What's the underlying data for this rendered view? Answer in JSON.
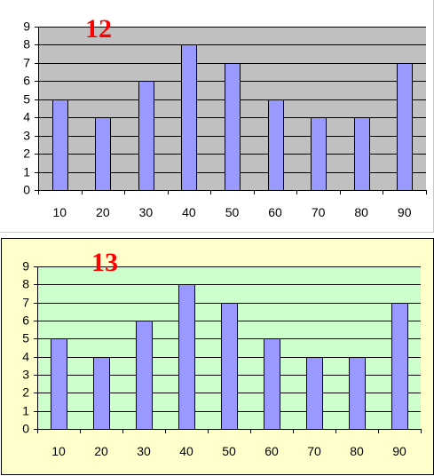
{
  "colors": {
    "bar_fill": "#9999ff",
    "bar_stroke": "#000000",
    "label_color": "#ff0000",
    "chart_12_plot_bg": "#c0c0c0",
    "chart_13_plot_bg": "#ccffcc",
    "chart_13_frame_bg": "#ffffcc"
  },
  "chart_data": [
    {
      "type": "bar",
      "title": "",
      "label": "12",
      "categories": [
        "10",
        "20",
        "30",
        "40",
        "50",
        "60",
        "70",
        "80",
        "90"
      ],
      "values": [
        5,
        4,
        6,
        8,
        7,
        5,
        4,
        4,
        7
      ],
      "xlabel": "",
      "ylabel": "",
      "ylim": [
        0,
        9
      ],
      "yticks": [
        "0",
        "1",
        "2",
        "3",
        "4",
        "5",
        "6",
        "7",
        "8",
        "9"
      ],
      "grid": true,
      "legend": "none"
    },
    {
      "type": "bar",
      "title": "",
      "label": "13",
      "categories": [
        "10",
        "20",
        "30",
        "40",
        "50",
        "60",
        "70",
        "80",
        "90"
      ],
      "values": [
        5,
        4,
        6,
        8,
        7,
        5,
        4,
        4,
        7
      ],
      "xlabel": "",
      "ylabel": "",
      "ylim": [
        0,
        9
      ],
      "yticks": [
        "0",
        "1",
        "2",
        "3",
        "4",
        "5",
        "6",
        "7",
        "8",
        "9"
      ],
      "grid": true,
      "legend": "none"
    }
  ]
}
